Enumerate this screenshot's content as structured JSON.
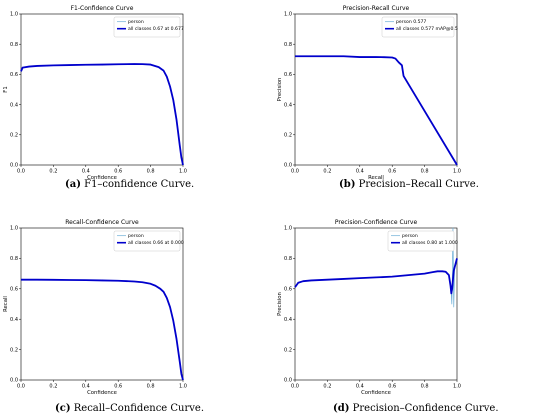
{
  "chart_data": [
    {
      "type": "line",
      "title": "F1-Confidence Curve",
      "xlabel": "Confidence",
      "ylabel": "F1",
      "xlim": [
        0,
        1
      ],
      "ylim": [
        0,
        1
      ],
      "xticks": [
        "0.0",
        "0.2",
        "0.4",
        "0.6",
        "0.8",
        "1.0"
      ],
      "yticks": [
        "0.0",
        "0.2",
        "0.4",
        "0.6",
        "0.8",
        "1.0"
      ],
      "legend_position": "top-right",
      "series": [
        {
          "name": "person",
          "color": "#6baed6",
          "width": "thin",
          "x": [
            0.0,
            0.01,
            0.05,
            0.1,
            0.2,
            0.3,
            0.4,
            0.5,
            0.6,
            0.7,
            0.75,
            0.8,
            0.85,
            0.88,
            0.9,
            0.92,
            0.94,
            0.96,
            0.98,
            0.99,
            1.0
          ],
          "y": [
            0.62,
            0.645,
            0.652,
            0.656,
            0.66,
            0.662,
            0.664,
            0.665,
            0.667,
            0.669,
            0.668,
            0.665,
            0.648,
            0.625,
            0.585,
            0.52,
            0.43,
            0.3,
            0.13,
            0.05,
            0.0
          ]
        },
        {
          "name": "all classes 0.67 at 0.677",
          "color": "#0000cc",
          "width": "thick",
          "x": [
            0.0,
            0.01,
            0.05,
            0.1,
            0.2,
            0.3,
            0.4,
            0.5,
            0.6,
            0.7,
            0.75,
            0.8,
            0.85,
            0.88,
            0.9,
            0.92,
            0.94,
            0.96,
            0.98,
            0.99,
            1.0
          ],
          "y": [
            0.62,
            0.645,
            0.652,
            0.656,
            0.66,
            0.662,
            0.664,
            0.665,
            0.667,
            0.669,
            0.668,
            0.665,
            0.648,
            0.625,
            0.585,
            0.52,
            0.43,
            0.3,
            0.13,
            0.05,
            0.0
          ]
        }
      ],
      "caption_letter": "(a)",
      "caption_text": " F1–confidence Curve."
    },
    {
      "type": "line",
      "title": "Precision-Recall Curve",
      "xlabel": "Recall",
      "ylabel": "Precision",
      "xlim": [
        0,
        1
      ],
      "ylim": [
        0,
        1
      ],
      "xticks": [
        "0.0",
        "0.2",
        "0.4",
        "0.6",
        "0.8",
        "1.0"
      ],
      "yticks": [
        "0.0",
        "0.2",
        "0.4",
        "0.6",
        "0.8",
        "1.0"
      ],
      "legend_position": "top-right",
      "series": [
        {
          "name": "person 0.577",
          "color": "#6baed6",
          "width": "thin",
          "x": [
            0.0,
            0.1,
            0.2,
            0.3,
            0.4,
            0.5,
            0.55,
            0.6,
            0.62,
            0.64,
            0.65,
            0.66,
            0.67,
            1.0
          ],
          "y": [
            0.72,
            0.72,
            0.72,
            0.72,
            0.715,
            0.715,
            0.714,
            0.712,
            0.705,
            0.68,
            0.67,
            0.66,
            0.59,
            0.0
          ]
        },
        {
          "name": "all classes 0.577 mAP@0.5",
          "color": "#0000cc",
          "width": "thick",
          "x": [
            0.0,
            0.1,
            0.2,
            0.3,
            0.4,
            0.5,
            0.55,
            0.6,
            0.62,
            0.64,
            0.65,
            0.66,
            0.67,
            1.0
          ],
          "y": [
            0.72,
            0.72,
            0.72,
            0.72,
            0.715,
            0.715,
            0.714,
            0.712,
            0.705,
            0.68,
            0.67,
            0.66,
            0.59,
            0.0
          ]
        }
      ],
      "caption_letter": "(b)",
      "caption_text": " Precision–Recall Curve."
    },
    {
      "type": "line",
      "title": "Recall-Confidence Curve",
      "xlabel": "Confidence",
      "ylabel": "Recall",
      "xlim": [
        0,
        1
      ],
      "ylim": [
        0,
        1
      ],
      "xticks": [
        "0.0",
        "0.2",
        "0.4",
        "0.6",
        "0.8",
        "1.0"
      ],
      "yticks": [
        "0.0",
        "0.2",
        "0.4",
        "0.6",
        "0.8",
        "1.0"
      ],
      "legend_position": "top-right",
      "series": [
        {
          "name": "person",
          "color": "#6baed6",
          "width": "thin",
          "x": [
            0.0,
            0.1,
            0.2,
            0.3,
            0.4,
            0.5,
            0.6,
            0.7,
            0.75,
            0.8,
            0.83,
            0.86,
            0.88,
            0.9,
            0.92,
            0.94,
            0.96,
            0.98,
            0.99,
            1.0
          ],
          "y": [
            0.66,
            0.66,
            0.659,
            0.658,
            0.657,
            0.655,
            0.653,
            0.648,
            0.643,
            0.633,
            0.62,
            0.6,
            0.58,
            0.54,
            0.48,
            0.39,
            0.27,
            0.12,
            0.04,
            0.0
          ]
        },
        {
          "name": "all classes 0.66 at 0.000",
          "color": "#0000cc",
          "width": "thick",
          "x": [
            0.0,
            0.1,
            0.2,
            0.3,
            0.4,
            0.5,
            0.6,
            0.7,
            0.75,
            0.8,
            0.83,
            0.86,
            0.88,
            0.9,
            0.92,
            0.94,
            0.96,
            0.98,
            0.99,
            1.0
          ],
          "y": [
            0.66,
            0.66,
            0.659,
            0.658,
            0.657,
            0.655,
            0.653,
            0.648,
            0.643,
            0.633,
            0.62,
            0.6,
            0.58,
            0.54,
            0.48,
            0.39,
            0.27,
            0.12,
            0.04,
            0.0
          ]
        }
      ],
      "caption_letter": "(c)",
      "caption_text": " Recall–Confidence Curve."
    },
    {
      "type": "line",
      "title": "Precision-Confidence Curve",
      "xlabel": "Confidence",
      "ylabel": "Precision",
      "xlim": [
        0,
        1
      ],
      "ylim": [
        0,
        1
      ],
      "xticks": [
        "0.0",
        "0.2",
        "0.4",
        "0.6",
        "0.8",
        "1.0"
      ],
      "yticks": [
        "0.0",
        "0.2",
        "0.4",
        "0.6",
        "0.8",
        "1.0"
      ],
      "legend_position": "top-right",
      "series": [
        {
          "name": "person",
          "color": "#6baed6",
          "width": "thin",
          "x": [
            0.0,
            0.02,
            0.05,
            0.1,
            0.2,
            0.3,
            0.4,
            0.5,
            0.6,
            0.7,
            0.75,
            0.8,
            0.85,
            0.88,
            0.91,
            0.93,
            0.95,
            0.96,
            0.965,
            0.968,
            0.97,
            0.975,
            0.98,
            0.985,
            0.99,
            1.0
          ],
          "y": [
            0.61,
            0.64,
            0.65,
            0.655,
            0.66,
            0.665,
            0.67,
            0.675,
            0.68,
            0.69,
            0.695,
            0.7,
            0.71,
            0.715,
            0.715,
            0.712,
            0.69,
            0.62,
            0.56,
            0.5,
            0.6,
            1.0,
            0.48,
            0.72,
            0.76,
            0.8
          ]
        },
        {
          "name": "all classes 0.80 at 1.000",
          "color": "#0000cc",
          "width": "thick",
          "x": [
            0.0,
            0.02,
            0.05,
            0.1,
            0.2,
            0.3,
            0.4,
            0.5,
            0.6,
            0.7,
            0.75,
            0.8,
            0.85,
            0.88,
            0.91,
            0.93,
            0.95,
            0.96,
            0.965,
            0.97,
            0.975,
            0.98,
            0.99,
            1.0
          ],
          "y": [
            0.61,
            0.64,
            0.65,
            0.655,
            0.66,
            0.665,
            0.67,
            0.675,
            0.68,
            0.69,
            0.695,
            0.7,
            0.71,
            0.715,
            0.715,
            0.712,
            0.69,
            0.62,
            0.57,
            0.6,
            0.66,
            0.72,
            0.76,
            0.8
          ]
        }
      ],
      "caption_letter": "(d)",
      "caption_text": " Precision–Confidence Curve."
    }
  ]
}
